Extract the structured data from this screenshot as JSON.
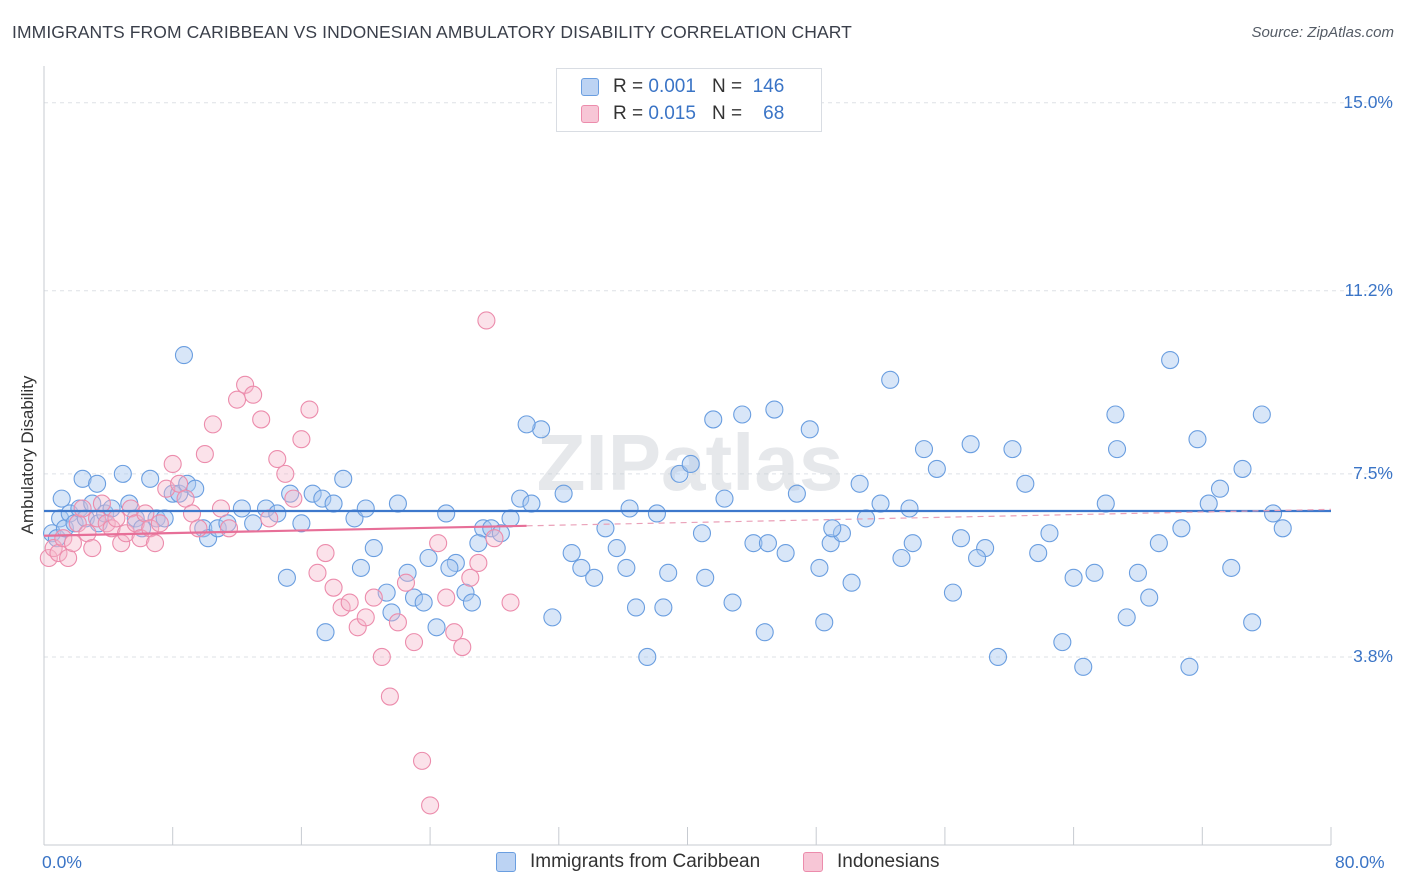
{
  "title": "IMMIGRANTS FROM CARIBBEAN VS INDONESIAN AMBULATORY DISABILITY CORRELATION CHART",
  "source": "Source: ZipAtlas.com",
  "watermark": "ZIPatlas",
  "legend": {
    "rows": [
      {
        "r_label": "R =",
        "r_value": "0.001",
        "n_label": "N =",
        "n_value": "146"
      },
      {
        "r_label": "R =",
        "r_value": "0.015",
        "n_label": "N =",
        "n_value": "68"
      }
    ]
  },
  "chart_data": {
    "type": "scatter",
    "title": "IMMIGRANTS FROM CARIBBEAN VS INDONESIAN AMBULATORY DISABILITY CORRELATION CHART",
    "xlabel": "",
    "ylabel": "Ambulatory Disability",
    "xlim": [
      0,
      80
    ],
    "ylim": [
      0,
      15.5
    ],
    "x_tick_labels": [
      "0.0%",
      "80.0%"
    ],
    "y_ticks": [
      3.8,
      7.5,
      11.2,
      15.0
    ],
    "y_tick_labels": [
      "3.8%",
      "7.5%",
      "11.2%",
      "15.0%"
    ],
    "grid": true,
    "legend_position": "top-center",
    "colors": {
      "caribbean": "#6a9ee0",
      "indonesian": "#ec8cac",
      "axis_text": "#3a74c6"
    },
    "series": [
      {
        "name": "Immigrants from Caribbean",
        "color": "#6a9ee0",
        "trend": {
          "x": [
            0,
            80
          ],
          "y": [
            6.75,
            6.75
          ]
        },
        "points": [
          [
            0.5,
            6.3
          ],
          [
            0.8,
            6.2
          ],
          [
            1.0,
            6.6
          ],
          [
            1.3,
            6.4
          ],
          [
            1.6,
            6.7
          ],
          [
            1.9,
            6.5
          ],
          [
            2.2,
            6.8
          ],
          [
            2.6,
            6.6
          ],
          [
            3.0,
            6.9
          ],
          [
            3.4,
            6.5
          ],
          [
            3.8,
            6.7
          ],
          [
            4.2,
            6.8
          ],
          [
            1.1,
            7.0
          ],
          [
            2.4,
            7.4
          ],
          [
            3.3,
            7.3
          ],
          [
            4.9,
            7.5
          ],
          [
            5.3,
            6.9
          ],
          [
            5.7,
            6.6
          ],
          [
            6.1,
            6.4
          ],
          [
            6.6,
            7.4
          ],
          [
            7.0,
            6.6
          ],
          [
            7.5,
            6.6
          ],
          [
            8.0,
            7.1
          ],
          [
            8.4,
            7.1
          ],
          [
            8.9,
            7.3
          ],
          [
            9.4,
            7.2
          ],
          [
            9.9,
            6.4
          ],
          [
            10.2,
            6.2
          ],
          [
            10.8,
            6.4
          ],
          [
            11.4,
            6.5
          ],
          [
            12.3,
            6.8
          ],
          [
            13.0,
            6.5
          ],
          [
            13.8,
            6.8
          ],
          [
            14.5,
            6.7
          ],
          [
            15.3,
            7.1
          ],
          [
            16.0,
            6.5
          ],
          [
            16.7,
            7.1
          ],
          [
            17.3,
            7.0
          ],
          [
            18.0,
            6.9
          ],
          [
            18.6,
            7.4
          ],
          [
            19.3,
            6.6
          ],
          [
            20.0,
            6.8
          ],
          [
            20.5,
            6.0
          ],
          [
            21.3,
            5.1
          ],
          [
            22.0,
            6.9
          ],
          [
            22.6,
            5.5
          ],
          [
            23.0,
            5.0
          ],
          [
            23.6,
            4.9
          ],
          [
            24.4,
            4.4
          ],
          [
            25.0,
            6.7
          ],
          [
            25.6,
            5.7
          ],
          [
            26.2,
            5.1
          ],
          [
            26.6,
            4.9
          ],
          [
            27.3,
            6.4
          ],
          [
            27.8,
            6.4
          ],
          [
            28.4,
            6.3
          ],
          [
            29.0,
            6.6
          ],
          [
            29.6,
            7.0
          ],
          [
            30.3,
            6.9
          ],
          [
            30.9,
            8.4
          ],
          [
            31.6,
            4.6
          ],
          [
            32.3,
            7.1
          ],
          [
            32.8,
            5.9
          ],
          [
            33.4,
            5.6
          ],
          [
            34.2,
            5.4
          ],
          [
            34.9,
            6.4
          ],
          [
            35.6,
            6.0
          ],
          [
            36.2,
            5.6
          ],
          [
            36.8,
            4.8
          ],
          [
            37.5,
            3.8
          ],
          [
            38.1,
            6.7
          ],
          [
            38.8,
            5.5
          ],
          [
            39.5,
            7.5
          ],
          [
            40.2,
            7.7
          ],
          [
            40.9,
            6.3
          ],
          [
            41.6,
            8.6
          ],
          [
            42.3,
            7.0
          ],
          [
            42.8,
            4.9
          ],
          [
            43.4,
            8.7
          ],
          [
            44.1,
            6.1
          ],
          [
            44.8,
            4.3
          ],
          [
            45.4,
            8.8
          ],
          [
            46.1,
            5.9
          ],
          [
            46.8,
            7.1
          ],
          [
            47.6,
            8.4
          ],
          [
            48.2,
            5.6
          ],
          [
            48.9,
            6.1
          ],
          [
            49.6,
            6.3
          ],
          [
            50.2,
            5.3
          ],
          [
            50.7,
            7.3
          ],
          [
            51.1,
            6.6
          ],
          [
            52.0,
            6.9
          ],
          [
            52.6,
            9.4
          ],
          [
            53.3,
            5.8
          ],
          [
            54.0,
            6.1
          ],
          [
            54.7,
            8.0
          ],
          [
            55.5,
            7.6
          ],
          [
            56.5,
            5.1
          ],
          [
            57.6,
            8.1
          ],
          [
            58.5,
            6.0
          ],
          [
            59.3,
            3.8
          ],
          [
            60.2,
            8.0
          ],
          [
            61.0,
            7.3
          ],
          [
            61.8,
            5.9
          ],
          [
            62.5,
            6.3
          ],
          [
            63.3,
            4.1
          ],
          [
            64.0,
            5.4
          ],
          [
            64.6,
            3.6
          ],
          [
            65.3,
            5.5
          ],
          [
            66.0,
            6.9
          ],
          [
            66.7,
            8.0
          ],
          [
            67.3,
            4.6
          ],
          [
            68.0,
            5.5
          ],
          [
            68.7,
            5.0
          ],
          [
            69.3,
            6.1
          ],
          [
            70.0,
            9.8
          ],
          [
            70.7,
            6.4
          ],
          [
            71.2,
            3.6
          ],
          [
            71.7,
            8.2
          ],
          [
            72.4,
            6.9
          ],
          [
            73.1,
            7.2
          ],
          [
            73.8,
            5.6
          ],
          [
            74.5,
            7.6
          ],
          [
            75.1,
            4.5
          ],
          [
            75.7,
            8.7
          ],
          [
            76.4,
            6.7
          ],
          [
            77.0,
            6.4
          ],
          [
            66.6,
            8.7
          ],
          [
            58.0,
            5.8
          ],
          [
            57.0,
            6.2
          ],
          [
            53.8,
            6.8
          ],
          [
            49.0,
            6.4
          ],
          [
            48.5,
            4.5
          ],
          [
            45.0,
            6.1
          ],
          [
            41.1,
            5.4
          ],
          [
            38.5,
            4.8
          ],
          [
            36.4,
            6.8
          ],
          [
            30.0,
            8.5
          ],
          [
            27.0,
            6.1
          ],
          [
            25.2,
            5.6
          ],
          [
            23.9,
            5.8
          ],
          [
            21.6,
            4.7
          ],
          [
            19.7,
            5.6
          ],
          [
            17.5,
            4.3
          ],
          [
            15.1,
            5.4
          ],
          [
            8.7,
            9.9
          ]
        ]
      },
      {
        "name": "Indonesians",
        "color": "#ec8cac",
        "trend": {
          "x": [
            0,
            30
          ],
          "y": [
            6.25,
            6.45
          ]
        },
        "points": [
          [
            0.3,
            5.8
          ],
          [
            0.6,
            6.0
          ],
          [
            0.9,
            5.9
          ],
          [
            1.2,
            6.2
          ],
          [
            1.5,
            5.8
          ],
          [
            1.8,
            6.1
          ],
          [
            2.1,
            6.5
          ],
          [
            2.4,
            6.8
          ],
          [
            2.7,
            6.3
          ],
          [
            3.0,
            6.0
          ],
          [
            3.3,
            6.6
          ],
          [
            3.6,
            6.9
          ],
          [
            3.9,
            6.5
          ],
          [
            4.2,
            6.4
          ],
          [
            4.5,
            6.6
          ],
          [
            4.8,
            6.1
          ],
          [
            5.1,
            6.3
          ],
          [
            5.4,
            6.8
          ],
          [
            5.7,
            6.5
          ],
          [
            6.0,
            6.2
          ],
          [
            6.3,
            6.7
          ],
          [
            6.6,
            6.4
          ],
          [
            6.9,
            6.1
          ],
          [
            7.2,
            6.5
          ],
          [
            7.6,
            7.2
          ],
          [
            8.0,
            7.7
          ],
          [
            8.4,
            7.3
          ],
          [
            8.8,
            7.0
          ],
          [
            9.2,
            6.7
          ],
          [
            9.6,
            6.4
          ],
          [
            10.0,
            7.9
          ],
          [
            10.5,
            8.5
          ],
          [
            11.0,
            6.8
          ],
          [
            11.5,
            6.4
          ],
          [
            12.0,
            9.0
          ],
          [
            12.5,
            9.3
          ],
          [
            13.0,
            9.1
          ],
          [
            13.5,
            8.6
          ],
          [
            14.0,
            6.6
          ],
          [
            14.5,
            7.8
          ],
          [
            15.0,
            7.5
          ],
          [
            15.5,
            7.0
          ],
          [
            16.0,
            8.2
          ],
          [
            16.5,
            8.8
          ],
          [
            17.0,
            5.5
          ],
          [
            17.5,
            5.9
          ],
          [
            18.0,
            5.2
          ],
          [
            18.5,
            4.8
          ],
          [
            19.0,
            4.9
          ],
          [
            19.5,
            4.4
          ],
          [
            20.0,
            4.6
          ],
          [
            20.5,
            5.0
          ],
          [
            21.0,
            3.8
          ],
          [
            21.5,
            3.0
          ],
          [
            22.0,
            4.5
          ],
          [
            22.5,
            5.3
          ],
          [
            23.0,
            4.1
          ],
          [
            23.5,
            1.7
          ],
          [
            24.0,
            0.8
          ],
          [
            24.5,
            6.1
          ],
          [
            25.0,
            5.0
          ],
          [
            25.5,
            4.3
          ],
          [
            26.0,
            4.0
          ],
          [
            26.5,
            5.4
          ],
          [
            27.0,
            5.7
          ],
          [
            27.5,
            10.6
          ],
          [
            28.0,
            6.2
          ],
          [
            29.0,
            4.9
          ]
        ]
      }
    ]
  },
  "bottom_legend": {
    "items": [
      {
        "label": "Immigrants from Caribbean",
        "color": "#6a9ee0"
      },
      {
        "label": "Indonesians",
        "color": "#ec8cac"
      }
    ]
  }
}
